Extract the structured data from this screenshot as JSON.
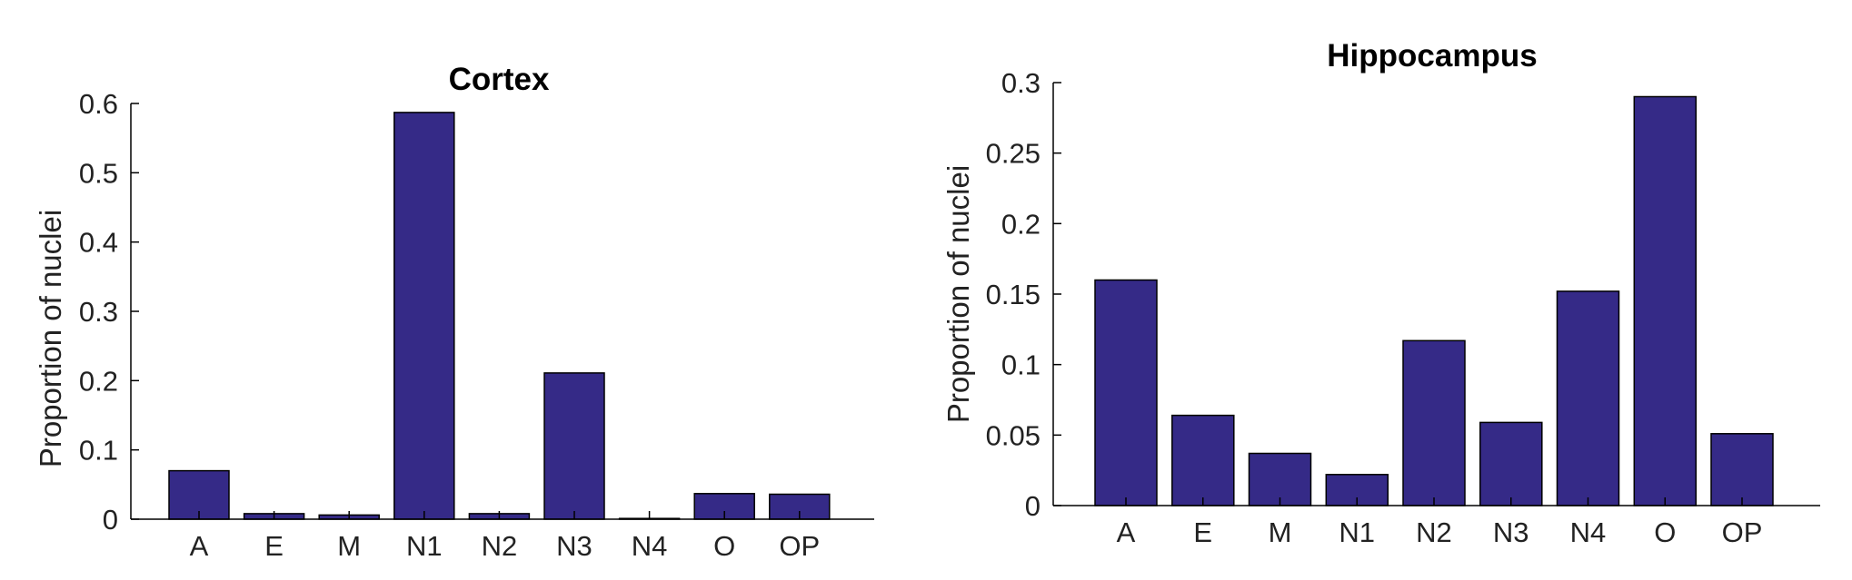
{
  "colors": {
    "bar_fill": "#352a87",
    "bar_stroke": "#000000",
    "axis": "#000000"
  },
  "chart_data": [
    {
      "type": "bar",
      "title": "Cortex",
      "ylabel": "Proportion of nuclei",
      "categories": [
        "A",
        "E",
        "M",
        "N1",
        "N2",
        "N3",
        "N4",
        "O",
        "OP"
      ],
      "values": [
        0.07,
        0.008,
        0.006,
        0.587,
        0.008,
        0.211,
        0.001,
        0.037,
        0.036
      ],
      "ylim": [
        0,
        0.6
      ],
      "yticks": [
        0,
        0.1,
        0.2,
        0.3,
        0.4,
        0.5,
        0.6
      ],
      "ytick_labels": [
        "0",
        "0.1",
        "0.2",
        "0.3",
        "0.4",
        "0.5",
        "0.6"
      ],
      "grid": false
    },
    {
      "type": "bar",
      "title": "Hippocampus",
      "ylabel": "Proportion of nuclei",
      "categories": [
        "A",
        "E",
        "M",
        "N1",
        "N2",
        "N3",
        "N4",
        "O",
        "OP"
      ],
      "values": [
        0.16,
        0.064,
        0.037,
        0.022,
        0.117,
        0.059,
        0.152,
        0.29,
        0.051
      ],
      "ylim": [
        0,
        0.3
      ],
      "yticks": [
        0,
        0.05,
        0.1,
        0.15,
        0.2,
        0.25,
        0.3
      ],
      "ytick_labels": [
        "0",
        "0.05",
        "0.1",
        "0.15",
        "0.2",
        "0.25",
        "0.3"
      ],
      "grid": false
    }
  ]
}
